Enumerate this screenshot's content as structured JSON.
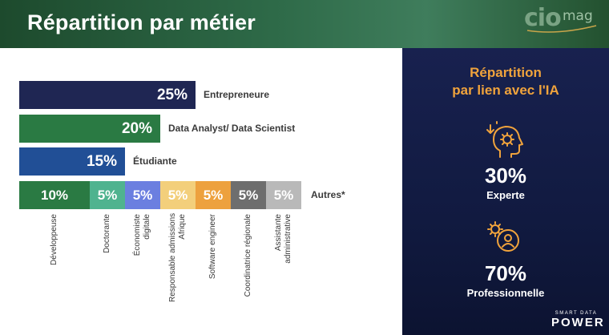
{
  "header": {
    "title": "Répartition par métier"
  },
  "logo": {
    "text_cio": "cio",
    "text_mag": "mag"
  },
  "chart_data": {
    "type": "bar",
    "orientation": "horizontal",
    "bars": [
      {
        "label": "Entrepreneure",
        "value": 25,
        "value_label": "25%",
        "color": "#1f2653"
      },
      {
        "label": "Data Analyst/ Data Scientist",
        "value": 20,
        "value_label": "20%",
        "color": "#2a7a43"
      },
      {
        "label": "Étudiante",
        "value": 15,
        "value_label": "15%",
        "color": "#214f96"
      }
    ],
    "stacked_bar": {
      "label": "Autres*",
      "segments": [
        {
          "label": "Développeuse",
          "value": 10,
          "value_label": "10%",
          "color": "#2a7a43"
        },
        {
          "label": "Doctorante",
          "value": 5,
          "value_label": "5%",
          "color": "#4fb38f"
        },
        {
          "label": "Économiste\ndigitale",
          "value": 5,
          "value_label": "5%",
          "color": "#6b7fe0"
        },
        {
          "label": "Responsable admissions\nAfrique",
          "value": 5,
          "value_label": "5%",
          "color": "#f3cf7b"
        },
        {
          "label": "Software engineer",
          "value": 5,
          "value_label": "5%",
          "color": "#eda13e"
        },
        {
          "label": "Coordinatrice régionale",
          "value": 5,
          "value_label": "5%",
          "color": "#6e6e6e"
        },
        {
          "label": "Assistante\nadministrative",
          "value": 5,
          "value_label": "5%",
          "color": "#b9b9b9"
        }
      ]
    }
  },
  "side_panel": {
    "title_line1": "Répartition",
    "title_line2": "par lien avec l'IA",
    "stats": [
      {
        "percent": "30%",
        "label": "Experte",
        "icon": "head-gear-icon"
      },
      {
        "percent": "70%",
        "label": "Professionnelle",
        "icon": "user-gear-icon"
      }
    ],
    "accent_color": "#f0a33c"
  },
  "brand": {
    "small": "SMART DATA",
    "big": "POWER"
  }
}
